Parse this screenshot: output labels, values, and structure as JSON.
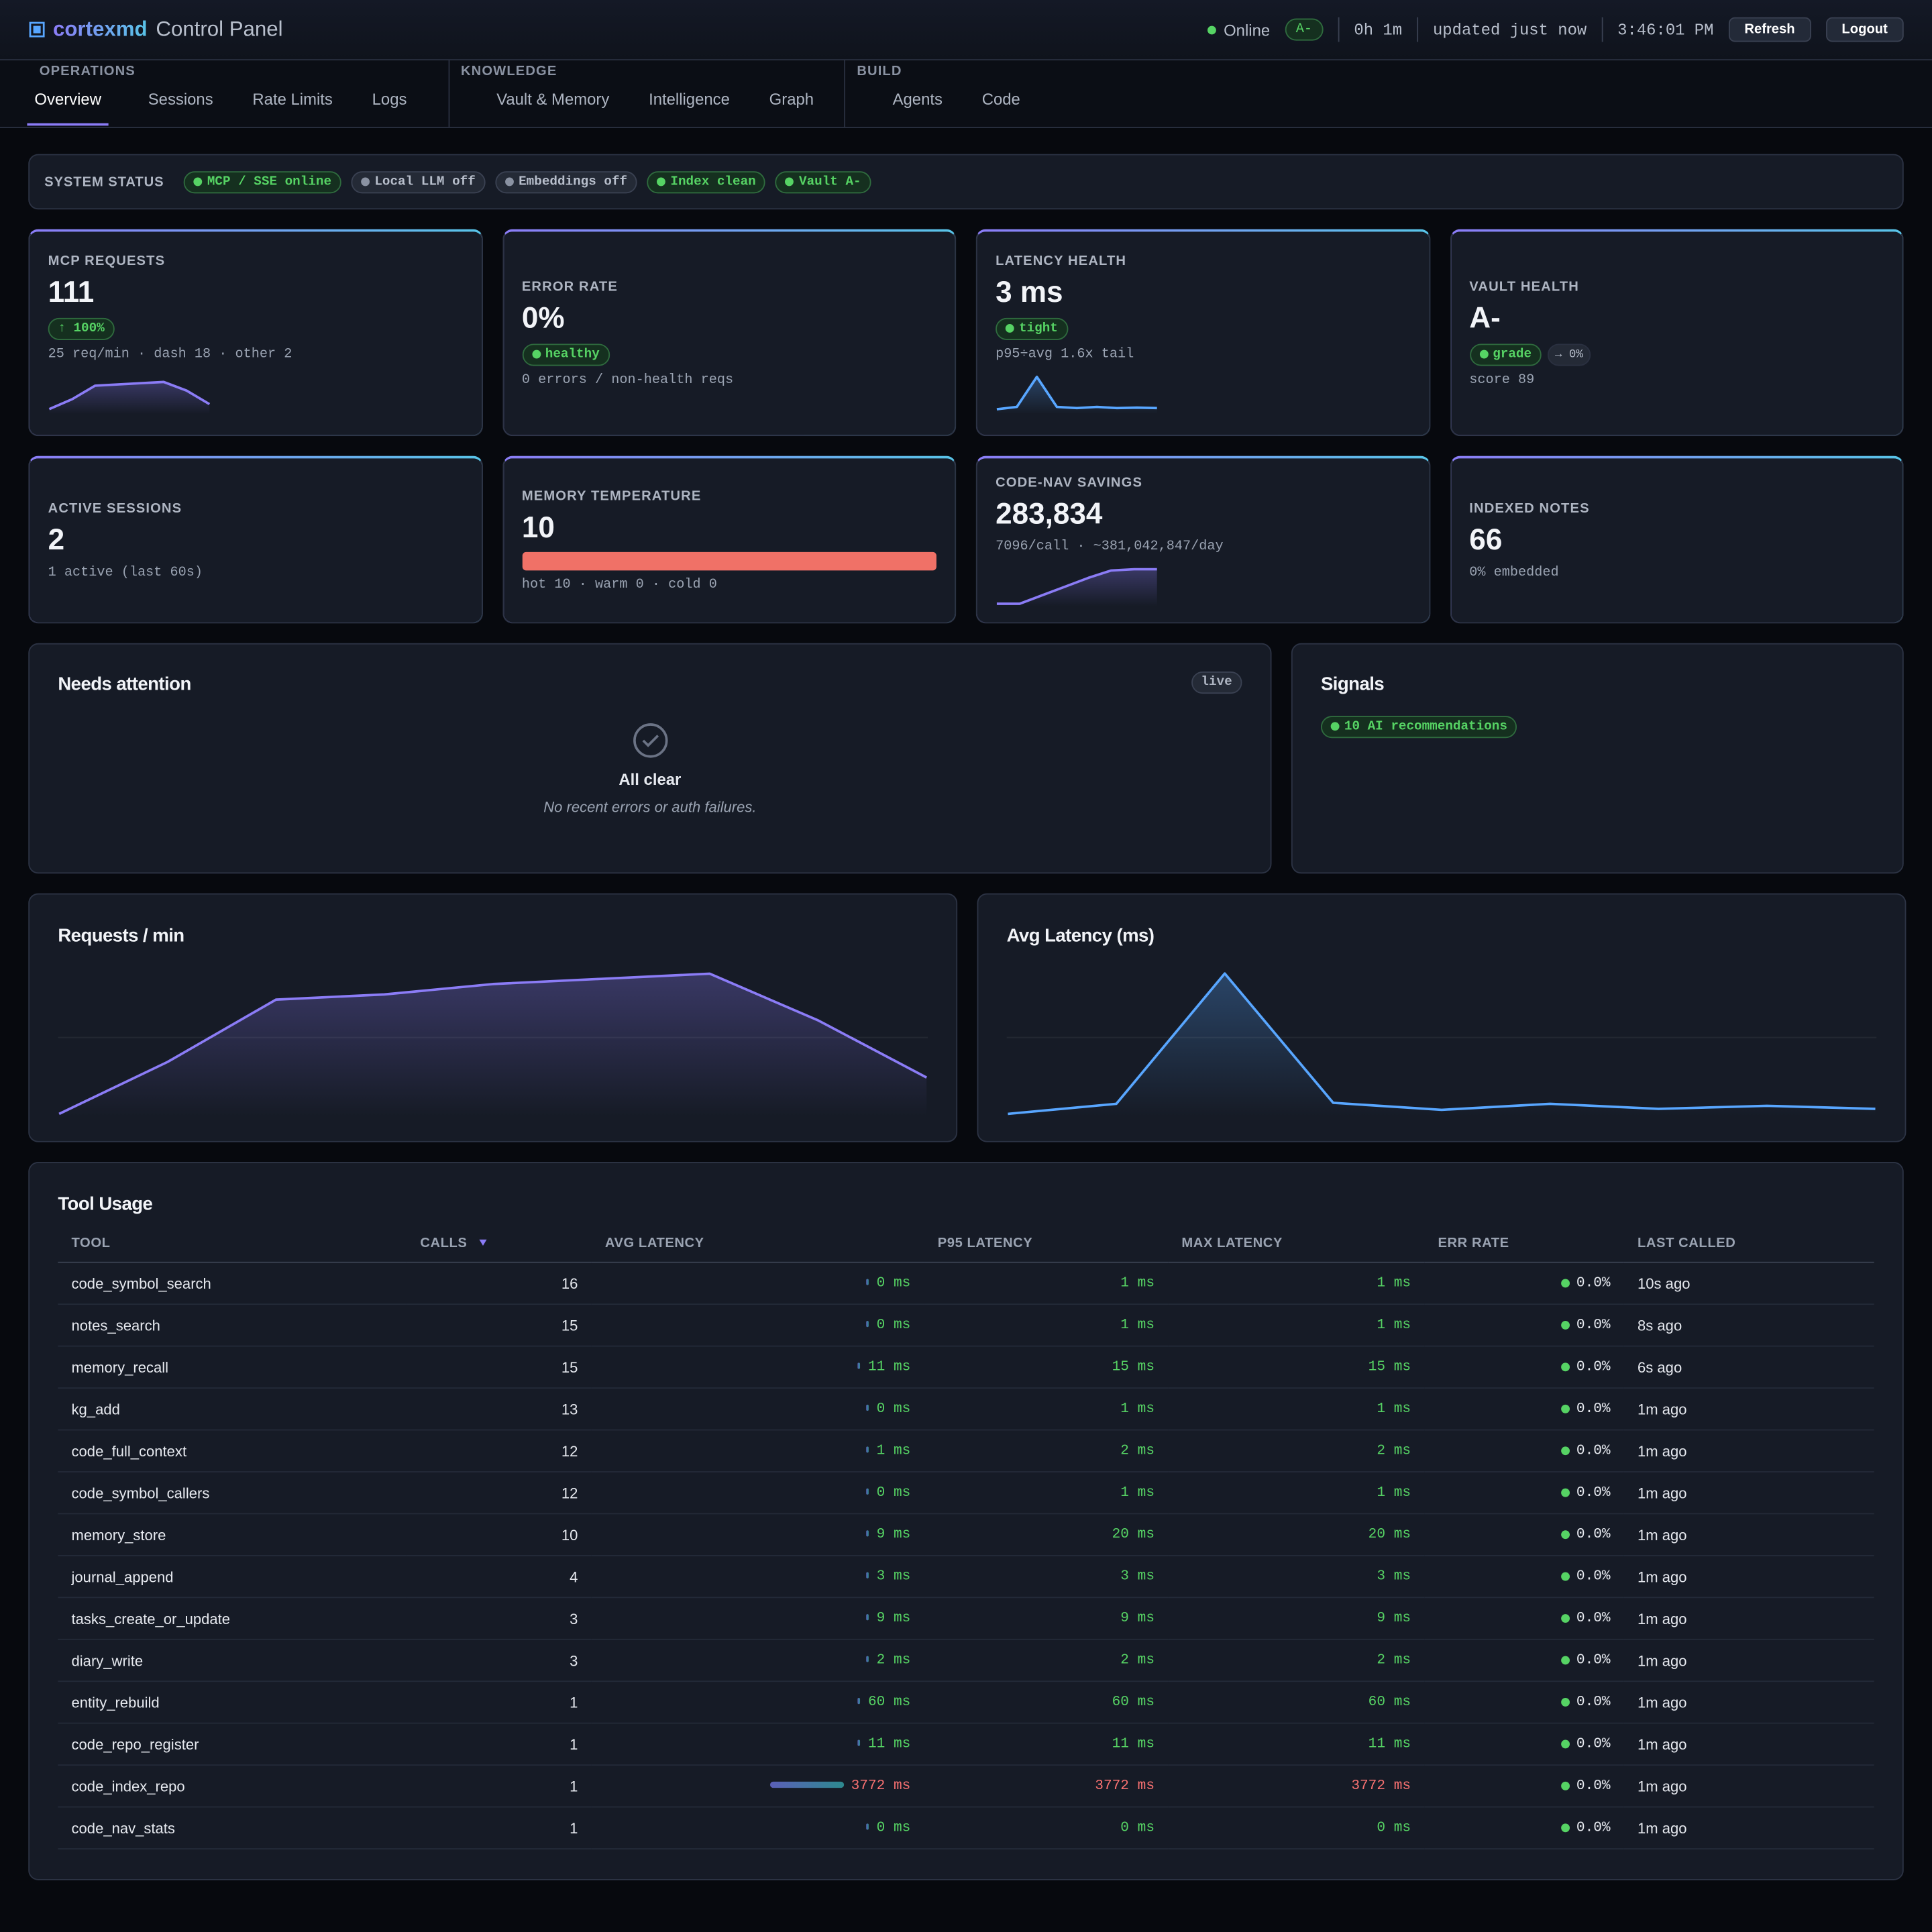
{
  "header": {
    "brand": "cortexmd",
    "subtitle": "Control Panel",
    "status": "Online",
    "grade": "A-",
    "uptime": "0h 1m",
    "updated": "updated just now",
    "time": "3:46:01 PM",
    "buttons": [
      "Refresh",
      "Logout"
    ]
  },
  "nav": {
    "active": "Overview",
    "groups": [
      {
        "label": "OPERATIONS",
        "items": [
          "Overview",
          "Sessions",
          "Rate Limits",
          "Logs"
        ]
      },
      {
        "label": "KNOWLEDGE",
        "items": [
          "Vault & Memory",
          "Intelligence",
          "Graph"
        ]
      },
      {
        "label": "BUILD",
        "items": [
          "Agents",
          "Code"
        ]
      }
    ]
  },
  "system_status": {
    "label": "SYSTEM STATUS",
    "pills": [
      {
        "text": "MCP / SSE online",
        "state": "ok"
      },
      {
        "text": "Local LLM off",
        "state": "off"
      },
      {
        "text": "Embeddings off",
        "state": "off"
      },
      {
        "text": "Index clean",
        "state": "ok"
      },
      {
        "text": "Vault A-",
        "state": "ok"
      }
    ]
  },
  "cards": [
    {
      "title": "MCP REQUESTS",
      "value": "111",
      "badge": "↑ 100%",
      "badge_dot": false,
      "sub": "25 req/min · dash 18 · other 2",
      "spark": {
        "values": [
          2,
          10,
          21,
          22,
          23,
          24,
          17,
          6
        ],
        "ylim": [
          0,
          30
        ],
        "color": "#8b7cf6"
      }
    },
    {
      "title": "ERROR RATE",
      "value": "0%",
      "badge": "healthy",
      "badge_dot": true,
      "sub": "0 errors / non-health reqs"
    },
    {
      "title": "LATENCY HEALTH",
      "value": "3 ms",
      "badge": "tight",
      "badge_dot": true,
      "sub": "p95÷avg 1.6x tail",
      "spark": {
        "values": [
          1,
          2,
          15,
          2,
          1.5,
          2,
          1.5,
          1.7,
          1.5
        ],
        "ylim": [
          0,
          16
        ],
        "color": "#58a6ff"
      }
    },
    {
      "title": "VAULT HEALTH",
      "value": "A-",
      "badge": "grade",
      "badge_dot": true,
      "extra": "→ 0%",
      "sub": "score 89"
    },
    {
      "title": "ACTIVE SESSIONS",
      "value": "2",
      "sub": "1 active (last 60s)"
    },
    {
      "title": "MEMORY TEMPERATURE",
      "value": "10",
      "bar": {
        "value": 10,
        "lim": [
          0,
          10
        ]
      },
      "sub": "hot 10 · warm 0 · cold 0"
    },
    {
      "title": "CODE-NAV SAVINGS",
      "value": "283,834",
      "sub": "7096/call · ~381,042,847/day",
      "spark": {
        "values": [
          0,
          0,
          7000,
          14000,
          21000,
          27000,
          28000,
          28000
        ],
        "ylim": [
          0,
          30000
        ],
        "color": "#8b7cf6"
      }
    },
    {
      "title": "INDEXED NOTES",
      "value": "66",
      "sub": "0% embedded"
    }
  ],
  "attention": {
    "title": "Needs attention",
    "tag": "live",
    "empty_title": "All clear",
    "empty_text": "No recent errors or auth failures."
  },
  "signals": {
    "title": "Signals",
    "pill": "10 AI recommendations"
  },
  "chart_data": [
    {
      "type": "area",
      "title": "Requests / min",
      "values": [
        0,
        10,
        22,
        23,
        25,
        26,
        27,
        18,
        7
      ],
      "ylim": [
        0,
        28
      ],
      "color": "#8b7cf6"
    },
    {
      "type": "area",
      "title": "Avg Latency (ms)",
      "values": [
        0,
        1,
        14,
        1.1,
        0.4,
        1,
        0.5,
        0.8,
        0.5
      ],
      "ylim": [
        0,
        14.5
      ],
      "color": "#58a6ff"
    }
  ],
  "table": {
    "title": "Tool Usage",
    "columns": [
      "TOOL",
      "CALLS",
      "AVG LATENCY",
      "P95 LATENCY",
      "MAX LATENCY",
      "ERR RATE",
      "LAST CALLED"
    ],
    "rows": [
      {
        "tool": "code_symbol_search",
        "calls": "16",
        "avg": "0 ms",
        "p95": "1 ms",
        "max": "1 ms",
        "err": "0.0%",
        "last": "10s ago"
      },
      {
        "tool": "notes_search",
        "calls": "15",
        "avg": "0 ms",
        "p95": "1 ms",
        "max": "1 ms",
        "err": "0.0%",
        "last": "8s ago"
      },
      {
        "tool": "memory_recall",
        "calls": "15",
        "avg": "11 ms",
        "p95": "15 ms",
        "max": "15 ms",
        "err": "0.0%",
        "last": "6s ago"
      },
      {
        "tool": "kg_add",
        "calls": "13",
        "avg": "0 ms",
        "p95": "1 ms",
        "max": "1 ms",
        "err": "0.0%",
        "last": "1m ago"
      },
      {
        "tool": "code_full_context",
        "calls": "12",
        "avg": "1 ms",
        "p95": "2 ms",
        "max": "2 ms",
        "err": "0.0%",
        "last": "1m ago"
      },
      {
        "tool": "code_symbol_callers",
        "calls": "12",
        "avg": "0 ms",
        "p95": "1 ms",
        "max": "1 ms",
        "err": "0.0%",
        "last": "1m ago"
      },
      {
        "tool": "memory_store",
        "calls": "10",
        "avg": "9 ms",
        "p95": "20 ms",
        "max": "20 ms",
        "err": "0.0%",
        "last": "1m ago"
      },
      {
        "tool": "journal_append",
        "calls": "4",
        "avg": "3 ms",
        "p95": "3 ms",
        "max": "3 ms",
        "err": "0.0%",
        "last": "1m ago"
      },
      {
        "tool": "tasks_create_or_update",
        "calls": "3",
        "avg": "9 ms",
        "p95": "9 ms",
        "max": "9 ms",
        "err": "0.0%",
        "last": "1m ago"
      },
      {
        "tool": "diary_write",
        "calls": "3",
        "avg": "2 ms",
        "p95": "2 ms",
        "max": "2 ms",
        "err": "0.0%",
        "last": "1m ago"
      },
      {
        "tool": "entity_rebuild",
        "calls": "1",
        "avg": "60 ms",
        "p95": "60 ms",
        "max": "60 ms",
        "err": "0.0%",
        "last": "1m ago"
      },
      {
        "tool": "code_repo_register",
        "calls": "1",
        "avg": "11 ms",
        "p95": "11 ms",
        "max": "11 ms",
        "err": "0.0%",
        "last": "1m ago"
      },
      {
        "tool": "code_index_repo",
        "calls": "1",
        "avg": "3772 ms",
        "p95": "3772 ms",
        "max": "3772 ms",
        "err": "0.0%",
        "last": "1m ago"
      },
      {
        "tool": "code_nav_stats",
        "calls": "1",
        "avg": "0 ms",
        "p95": "0 ms",
        "max": "0 ms",
        "err": "0.0%",
        "last": "1m ago"
      }
    ]
  }
}
